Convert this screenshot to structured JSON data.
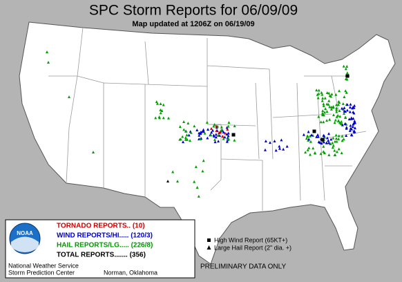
{
  "header": {
    "title": "SPC Storm Reports for 06/09/09",
    "subtitle": "Map updated at 1206Z on 06/19/09"
  },
  "legend": {
    "logo": "NOAA",
    "tornado": "TORNADO REPORTS.. (10)",
    "wind": "WIND REPORTS/HI..... (120/3)",
    "hail": "HAIL REPORTS/LG..... (226/8)",
    "total": "TOTAL REPORTS....... (356)",
    "agency": "National Weather Service",
    "center": "Storm Prediction Center",
    "location": "Norman, Oklahoma"
  },
  "key": {
    "high_wind": "High Wind Report (65KT+)",
    "large_hail": "Large Hail Report (2\" dia. +)"
  },
  "footer": {
    "note": "PRELIMINARY DATA ONLY"
  }
}
